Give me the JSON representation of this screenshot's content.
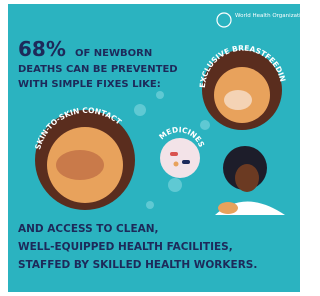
{
  "logo": {
    "name": "World Health Organization"
  },
  "headline": {
    "stat": "68%",
    "lines": [
      "OF NEWBORN",
      "DEATHS CAN BE PREVENTED",
      "WITH SIMPLE FIXES LIKE:"
    ]
  },
  "fixes": [
    "EXCLUSIVE BREASTFEEDING",
    "SKIN-TO-SKIN CONTACT",
    "MEDICINES"
  ],
  "footer": {
    "lines": [
      "AND ACCESS TO CLEAN,",
      "WELL-EQUIPPED HEALTH FACILITIES,",
      "STAFFED BY SKILLED HEALTH WORKERS."
    ]
  }
}
